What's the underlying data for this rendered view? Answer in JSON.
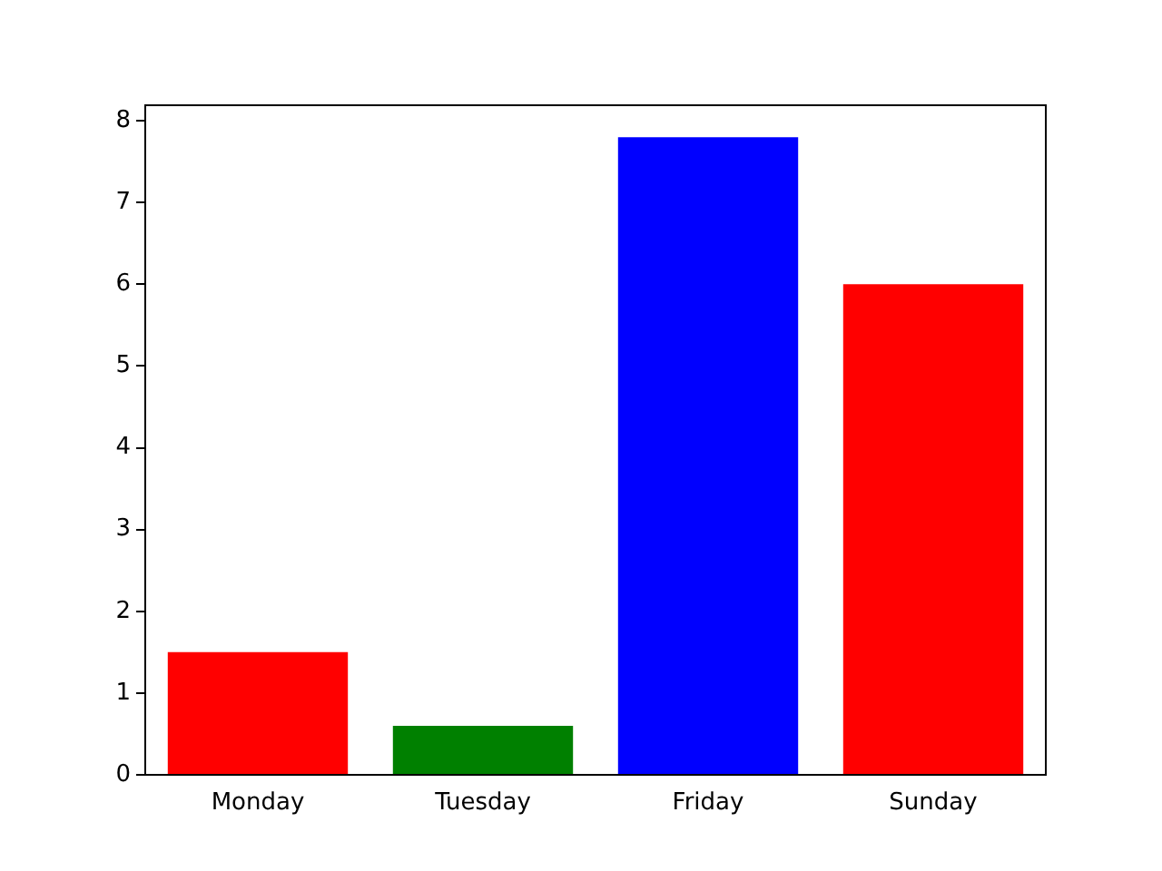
{
  "chart_data": {
    "type": "bar",
    "categories": [
      "Monday",
      "Tuesday",
      "Friday",
      "Sunday"
    ],
    "values": [
      1.5,
      0.6,
      7.8,
      6
    ],
    "colors": [
      "#ff0000",
      "#008000",
      "#0000ff",
      "#ff0000"
    ],
    "ylim": [
      0,
      8.19
    ],
    "yticks": [
      0,
      1,
      2,
      3,
      4,
      5,
      6,
      7,
      8
    ],
    "grid": false,
    "legend": false
  }
}
